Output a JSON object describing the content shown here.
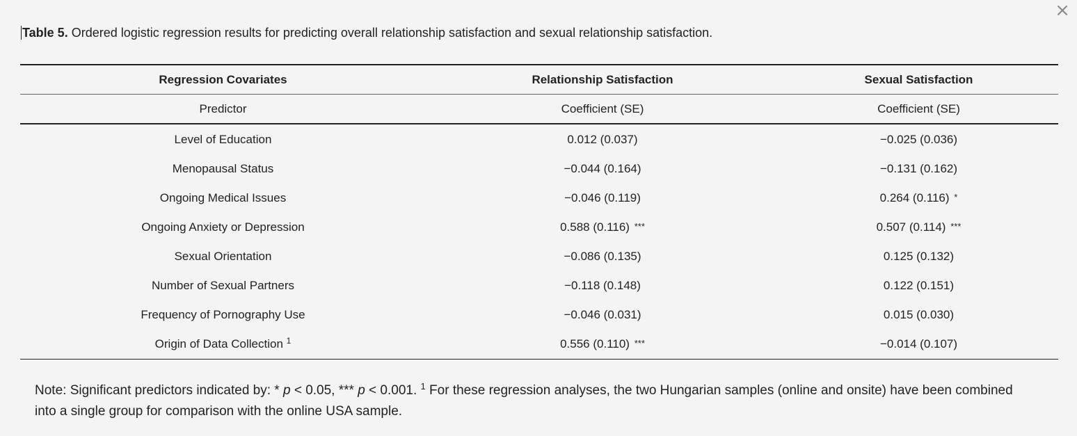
{
  "caption": {
    "label": "Table 5.",
    "text": " Ordered logistic regression results for predicting overall relationship satisfaction and sexual relationship satisfaction."
  },
  "close_icon": "×",
  "table": {
    "headers": [
      "Regression Covariates",
      "Relationship Satisfaction",
      "Sexual Satisfaction"
    ],
    "subheaders": [
      "Predictor",
      "Coefficient (SE)",
      "Coefficient (SE)"
    ],
    "rows": [
      {
        "predictor": "Level of Education",
        "footnote": "",
        "rel": "0.012 (0.037)",
        "rel_sig": "",
        "sex": "−0.025 (0.036)",
        "sex_sig": ""
      },
      {
        "predictor": "Menopausal Status",
        "footnote": "",
        "rel": "−0.044 (0.164)",
        "rel_sig": "",
        "sex": "−0.131 (0.162)",
        "sex_sig": ""
      },
      {
        "predictor": "Ongoing Medical Issues",
        "footnote": "",
        "rel": "−0.046 (0.119)",
        "rel_sig": "",
        "sex": "0.264 (0.116)",
        "sex_sig": "*"
      },
      {
        "predictor": "Ongoing Anxiety or Depression",
        "footnote": "",
        "rel": "0.588 (0.116)",
        "rel_sig": "***",
        "sex": "0.507 (0.114)",
        "sex_sig": "***"
      },
      {
        "predictor": "Sexual Orientation",
        "footnote": "",
        "rel": "−0.086 (0.135)",
        "rel_sig": "",
        "sex": "0.125 (0.132)",
        "sex_sig": ""
      },
      {
        "predictor": "Number of Sexual Partners",
        "footnote": "",
        "rel": "−0.118 (0.148)",
        "rel_sig": "",
        "sex": "0.122 (0.151)",
        "sex_sig": ""
      },
      {
        "predictor": "Frequency of Pornography Use",
        "footnote": "",
        "rel": "−0.046 (0.031)",
        "rel_sig": "",
        "sex": "0.015 (0.030)",
        "sex_sig": ""
      },
      {
        "predictor": "Origin of Data Collection",
        "footnote": "1",
        "rel": "0.556 (0.110)",
        "rel_sig": "***",
        "sex": "−0.014 (0.107)",
        "sex_sig": ""
      }
    ]
  },
  "note": {
    "prefix": "Note: Significant predictors indicated by: * ",
    "p1": "p",
    "mid1": " < 0.05, *** ",
    "p2": "p",
    "mid2": " < 0.001. ",
    "footnote_mark": "1",
    "suffix": " For these regression analyses, the two Hungarian samples (online and onsite) have been combined into a single group for comparison with the online USA sample."
  }
}
